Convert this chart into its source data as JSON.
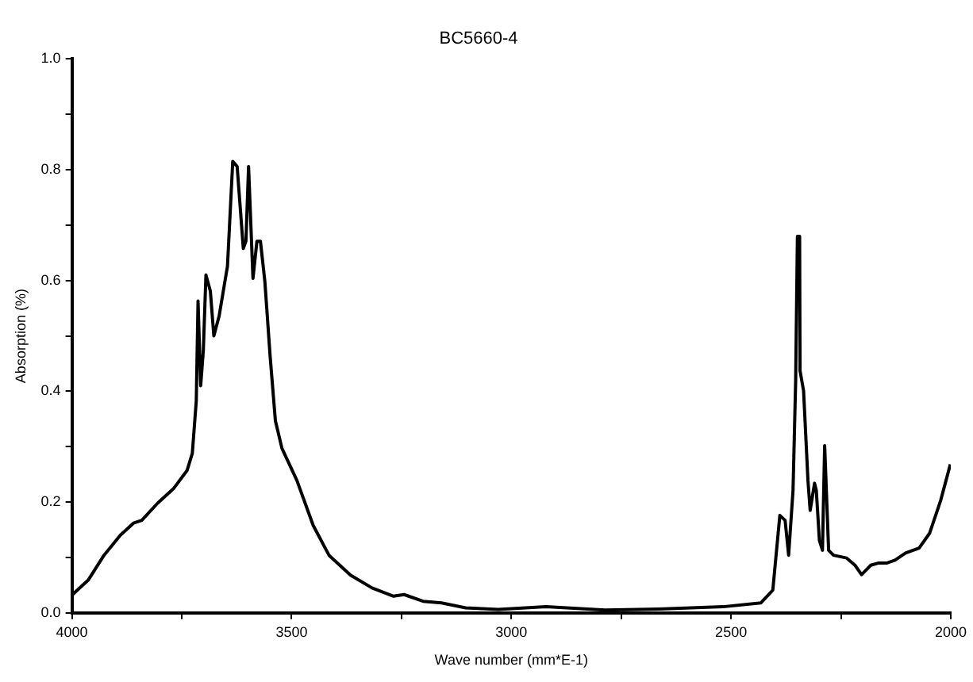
{
  "chart_data": {
    "type": "line",
    "title": "BC5660-4",
    "xlabel": "Wave number (mm*E-1)",
    "ylabel": "Absorption (%)",
    "xlim": [
      4000,
      2000
    ],
    "xticks": [
      4000,
      {
        "value": 3750,
        "label": null
      },
      3500,
      {
        "value": 3250,
        "label": null
      },
      3000,
      {
        "value": 2750,
        "label": null
      },
      2500,
      {
        "value": 2250,
        "label": null
      },
      2000
    ],
    "ylim": [
      0,
      1
    ],
    "yticks": [
      {
        "value": 0,
        "label": "0.0"
      },
      {
        "value": 0.1,
        "label": null
      },
      {
        "value": 0.2,
        "label": "0.2"
      },
      {
        "value": 0.3,
        "label": null
      },
      {
        "value": 0.4,
        "label": "0.4"
      },
      {
        "value": 0.5,
        "label": null
      },
      {
        "value": 0.6,
        "label": "0.6"
      },
      {
        "value": 0.7,
        "label": null
      },
      {
        "value": 0.8,
        "label": "0.8"
      },
      {
        "value": 0.9,
        "label": null
      },
      {
        "value": 1,
        "label": "1.0"
      }
    ],
    "grid": false,
    "legend": false,
    "marker": "none",
    "line_style": "solid",
    "series": [
      {
        "color": "#000000",
        "x": [
          4000,
          3963,
          3927,
          3890,
          3860,
          3841,
          3805,
          3768,
          3738,
          3726,
          3717,
          3713,
          3707,
          3701,
          3695,
          3685,
          3677,
          3665,
          3646,
          3634,
          3624,
          3610,
          3604,
          3598,
          3588,
          3579,
          3571,
          3561,
          3549,
          3537,
          3522,
          3488,
          3451,
          3415,
          3366,
          3317,
          3268,
          3244,
          3201,
          3159,
          3104,
          3030,
          2921,
          2787,
          2664,
          2518,
          2432,
          2405,
          2389,
          2377,
          2369,
          2359,
          2353,
          2349,
          2344,
          2343,
          2335,
          2325,
          2320,
          2310,
          2306,
          2299,
          2292,
          2287,
          2278,
          2267,
          2237,
          2218,
          2203,
          2182,
          2164,
          2145,
          2127,
          2103,
          2072,
          2048,
          2023,
          2001
        ],
        "values": [
          0.032,
          0.059,
          0.104,
          0.14,
          0.162,
          0.167,
          0.198,
          0.225,
          0.257,
          0.288,
          0.383,
          0.563,
          0.41,
          0.473,
          0.61,
          0.581,
          0.5,
          0.536,
          0.626,
          0.815,
          0.806,
          0.658,
          0.671,
          0.806,
          0.604,
          0.671,
          0.671,
          0.599,
          0.464,
          0.347,
          0.297,
          0.239,
          0.158,
          0.104,
          0.068,
          0.045,
          0.03,
          0.033,
          0.021,
          0.018,
          0.009,
          0.006,
          0.011,
          0.005,
          0.007,
          0.011,
          0.018,
          0.041,
          0.176,
          0.167,
          0.104,
          0.221,
          0.419,
          0.68,
          0.68,
          0.437,
          0.401,
          0.239,
          0.185,
          0.234,
          0.221,
          0.131,
          0.113,
          0.302,
          0.113,
          0.104,
          0.099,
          0.086,
          0.069,
          0.086,
          0.09,
          0.09,
          0.095,
          0.108,
          0.117,
          0.144,
          0.203,
          0.268
        ]
      }
    ]
  }
}
